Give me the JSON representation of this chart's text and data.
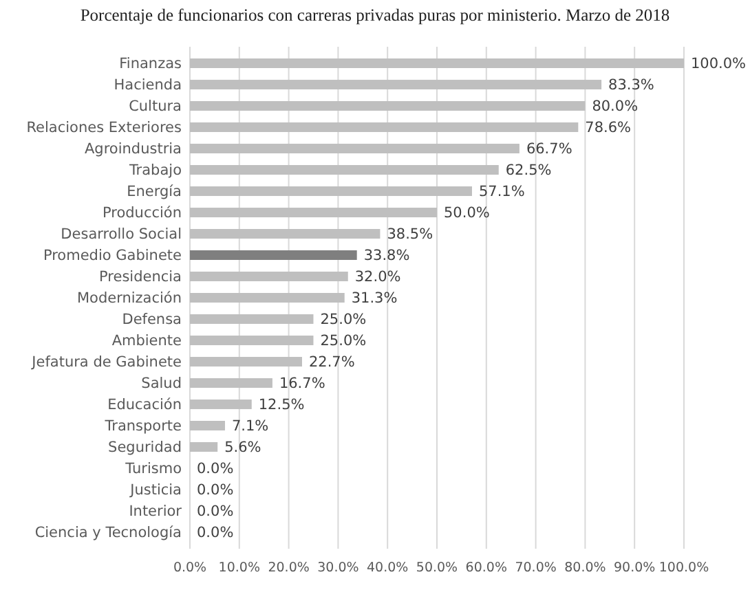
{
  "chart_data": {
    "type": "bar",
    "orientation": "horizontal",
    "title": "Porcentaje de funcionarios con carreras privadas puras por ministerio. Marzo de 2018",
    "categories": [
      "Finanzas",
      "Hacienda",
      "Cultura",
      "Relaciones Exteriores",
      "Agroindustria",
      "Trabajo",
      "Energía",
      "Producción",
      "Desarrollo Social",
      "Promedio Gabinete",
      "Presidencia",
      "Modernización",
      "Defensa",
      "Ambiente",
      "Jefatura de Gabinete",
      "Salud",
      "Educación",
      "Transporte",
      "Seguridad",
      "Turismo",
      "Justicia",
      "Interior",
      "Ciencia y Tecnología"
    ],
    "values": [
      100.0,
      83.3,
      80.0,
      78.6,
      66.7,
      62.5,
      57.1,
      50.0,
      38.5,
      33.8,
      32.0,
      31.3,
      25.0,
      25.0,
      22.7,
      16.7,
      12.5,
      7.1,
      5.6,
      0.0,
      0.0,
      0.0,
      0.0
    ],
    "value_labels": [
      "100.0%",
      "83.3%",
      "80.0%",
      "78.6%",
      "66.7%",
      "62.5%",
      "57.1%",
      "50.0%",
      "38.5%",
      "33.8%",
      "32.0%",
      "31.3%",
      "25.0%",
      "25.0%",
      "22.7%",
      "16.7%",
      "12.5%",
      "7.1%",
      "5.6%",
      "0.0%",
      "0.0%",
      "0.0%",
      "0.0%"
    ],
    "colors": [
      "#bfbfbf",
      "#bfbfbf",
      "#bfbfbf",
      "#bfbfbf",
      "#bfbfbf",
      "#bfbfbf",
      "#bfbfbf",
      "#bfbfbf",
      "#bfbfbf",
      "#7f7f7f",
      "#bfbfbf",
      "#bfbfbf",
      "#bfbfbf",
      "#bfbfbf",
      "#bfbfbf",
      "#bfbfbf",
      "#bfbfbf",
      "#bfbfbf",
      "#bfbfbf",
      "#bfbfbf",
      "#bfbfbf",
      "#bfbfbf",
      "#bfbfbf"
    ],
    "xlim": [
      0,
      100
    ],
    "xticks": [
      {
        "value": 0,
        "label": "0.0%"
      },
      {
        "value": 10,
        "label": "10.0%"
      },
      {
        "value": 20,
        "label": "20.0%"
      },
      {
        "value": 30,
        "label": "30.0%"
      },
      {
        "value": 40,
        "label": "40.0%"
      },
      {
        "value": 50,
        "label": "50.0%"
      },
      {
        "value": 60,
        "label": "60.0%"
      },
      {
        "value": 70,
        "label": "70.0%"
      },
      {
        "value": 80,
        "label": "80.0%"
      },
      {
        "value": 90,
        "label": "90.0%"
      },
      {
        "value": 100,
        "label": "100.0%"
      }
    ],
    "grid": "x"
  }
}
